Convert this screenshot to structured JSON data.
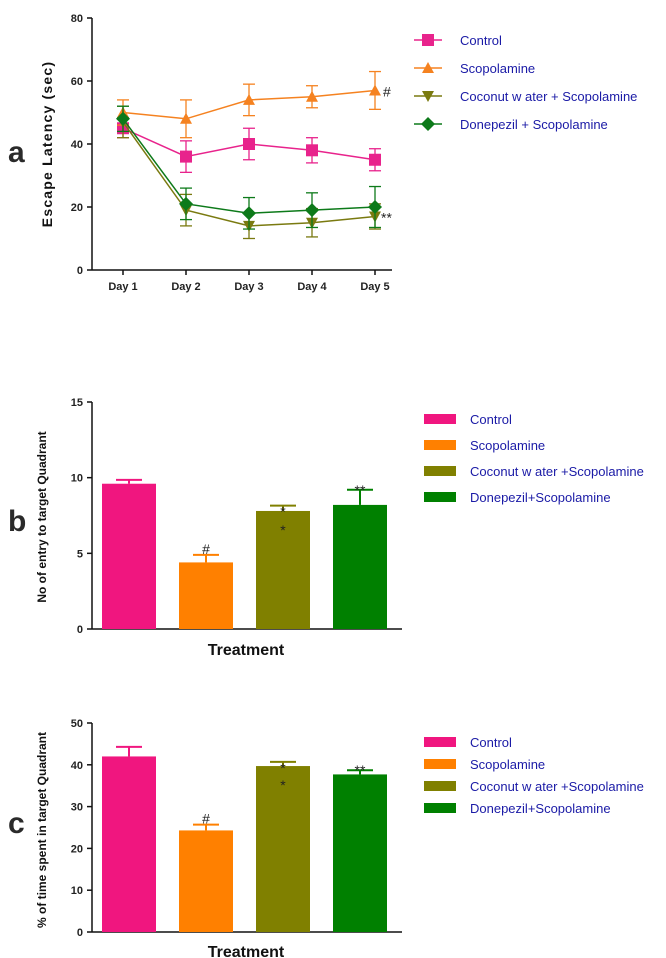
{
  "chart_data": [
    {
      "type": "line",
      "panel": "a",
      "ylabel": "Escape Latency (sec)",
      "xlabel": "",
      "categories": [
        "Day 1",
        "Day 2",
        "Day 3",
        "Day 4",
        "Day 5"
      ],
      "ylim": [
        0,
        80
      ],
      "yticks": [
        0,
        20,
        40,
        60,
        80
      ],
      "legend_position": "right",
      "series": [
        {
          "name": "Control",
          "color": "#e8238c",
          "marker": "square",
          "values": [
            45,
            36,
            40,
            38,
            35
          ],
          "errors": [
            3,
            5,
            5,
            4,
            3.5
          ]
        },
        {
          "name": "Scopolamine",
          "color": "#f58220",
          "marker": "triangle-up",
          "values": [
            50,
            48,
            54,
            55,
            57
          ],
          "errors": [
            4,
            6,
            5,
            3.5,
            6
          ]
        },
        {
          "name": "Coconut w ater + Scopolamine",
          "color": "#7a7a10",
          "marker": "triangle-down",
          "values": [
            47,
            19,
            14,
            15,
            17
          ],
          "errors": [
            5,
            5,
            4,
            4.5,
            4
          ]
        },
        {
          "name": "Donepezil + Scopolamine",
          "color": "#0d7a1a",
          "marker": "diamond",
          "values": [
            48,
            21,
            18,
            19,
            20
          ],
          "errors": [
            4,
            5,
            5,
            5.5,
            6.5
          ]
        }
      ],
      "annotations": [
        {
          "text": "#",
          "category": "Day 5",
          "series": "Scopolamine"
        },
        {
          "text": "**",
          "category": "Day 5",
          "series": "Coconut w ater + Scopolamine"
        }
      ]
    },
    {
      "type": "bar",
      "panel": "b",
      "ylabel": "No of entry to target Quadrant",
      "xlabel": "Treatment",
      "categories": [
        "Control",
        "Scopolamine",
        "Coconut w ater +Scopolamine",
        "Donepezil+Scopolamine"
      ],
      "legend_position": "right",
      "values": [
        9.6,
        4.4,
        7.8,
        8.2
      ],
      "errors": [
        0.25,
        0.5,
        0.35,
        1.0
      ],
      "colors": [
        "#f0167f",
        "#ff8000",
        "#808000",
        "#008000"
      ],
      "ylim": [
        0,
        15
      ],
      "yticks": [
        0,
        5,
        10,
        15
      ],
      "annotations": [
        {
          "category": "Scopolamine",
          "text": "#"
        },
        {
          "category": "Coconut w ater +Scopolamine",
          "text": "*"
        },
        {
          "category": "Coconut w ater +Scopolamine",
          "text": "*"
        },
        {
          "category": "Donepezil+Scopolamine",
          "text": "**"
        }
      ]
    },
    {
      "type": "bar",
      "panel": "c",
      "ylabel": "% of time spent in target Quadrant",
      "xlabel": "Treatment",
      "categories": [
        "Control",
        "Scopolamine",
        "Coconut w ater +Scopolamine",
        "Donepezil+Scopolamine"
      ],
      "legend_position": "right",
      "values": [
        42,
        24.3,
        39.7,
        37.7
      ],
      "errors": [
        2.3,
        1.4,
        1.0,
        1.0
      ],
      "colors": [
        "#f0167f",
        "#ff8000",
        "#808000",
        "#008000"
      ],
      "ylim": [
        0,
        50
      ],
      "yticks": [
        0,
        10,
        20,
        30,
        40,
        50
      ],
      "annotations": [
        {
          "category": "Scopolamine",
          "text": "#"
        },
        {
          "category": "Coconut w ater +Scopolamine",
          "text": "*"
        },
        {
          "category": "Coconut w ater +Scopolamine",
          "text": "*"
        },
        {
          "category": "Donepezil+Scopolamine",
          "text": "**"
        }
      ]
    }
  ]
}
